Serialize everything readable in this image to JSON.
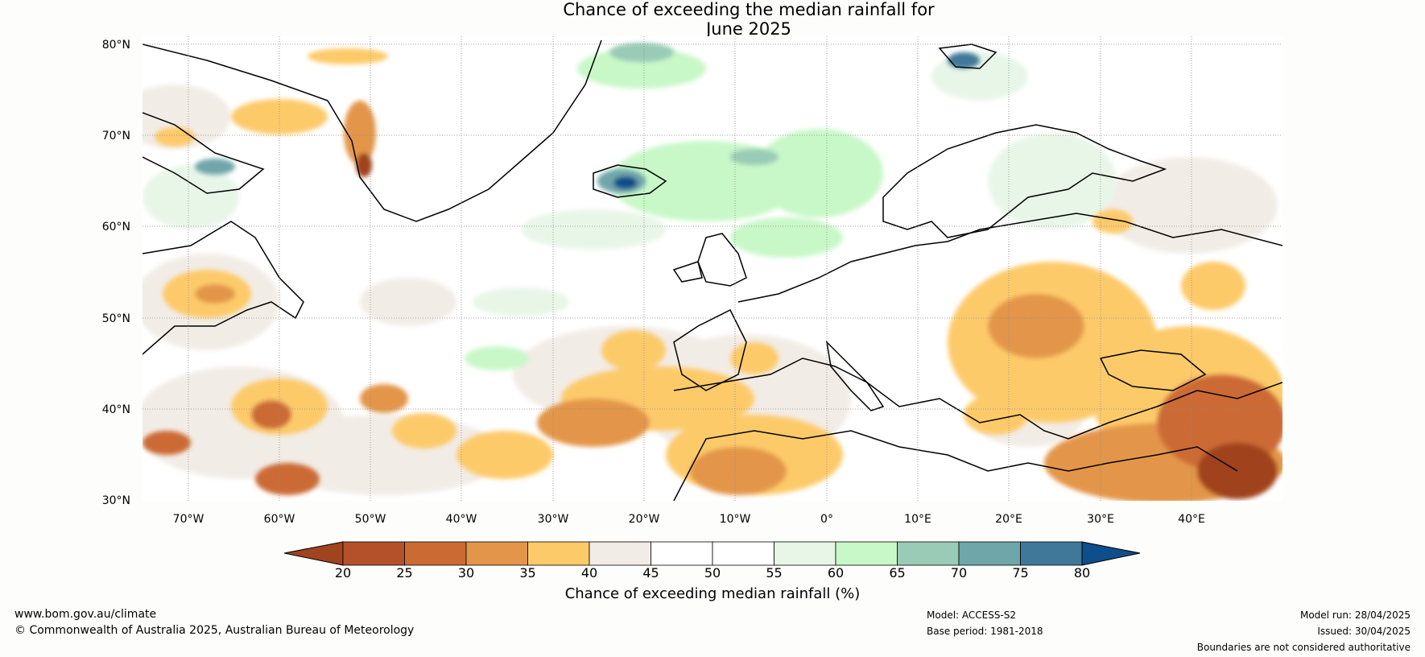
{
  "title_line1": "Chance of exceeding the median rainfall for",
  "title_line2": "June 2025",
  "lat_labels": [
    "80°N",
    "70°N",
    "60°N",
    "50°N",
    "40°N",
    "30°N"
  ],
  "lon_labels": [
    "70°W",
    "60°W",
    "50°W",
    "40°W",
    "30°W",
    "20°W",
    "10°W",
    "0°",
    "10°E",
    "20°E",
    "30°E",
    "40°E"
  ],
  "colorbar": {
    "ticks": [
      "20",
      "25",
      "30",
      "35",
      "40",
      "45",
      "50",
      "55",
      "60",
      "65",
      "70",
      "75",
      "80"
    ],
    "colors": [
      "#a0431f",
      "#b5512a",
      "#cc6a34",
      "#e3964a",
      "#fdca6a",
      "#f2ece6",
      "#ffffff",
      "#ffffff",
      "#e8f6e8",
      "#c8f8c8",
      "#9acbb6",
      "#6fa6aa",
      "#3f7899",
      "#0e4e8a"
    ],
    "label": "Chance of exceeding median rainfall (%)"
  },
  "colors": {
    "brown": "#a0431f",
    "orange": "#e3964a",
    "yellow": "#fdca6a",
    "beige": "#f2ece6",
    "lightgreen": "#c8f8c8",
    "teal": "#6fa6aa",
    "blue": "#0e4e8a"
  },
  "footer": {
    "url": "www.bom.gov.au/climate",
    "copyright": "© Commonwealth of Australia 2025, Australian Bureau of Meteorology",
    "model": "Model: ACCESS-S2",
    "base_period": "Base period: 1981-2018",
    "model_run": "Model run: 28/04/2025",
    "issued": "Issued: 30/04/2025",
    "disclaimer": "Boundaries are not considered authoritative"
  }
}
